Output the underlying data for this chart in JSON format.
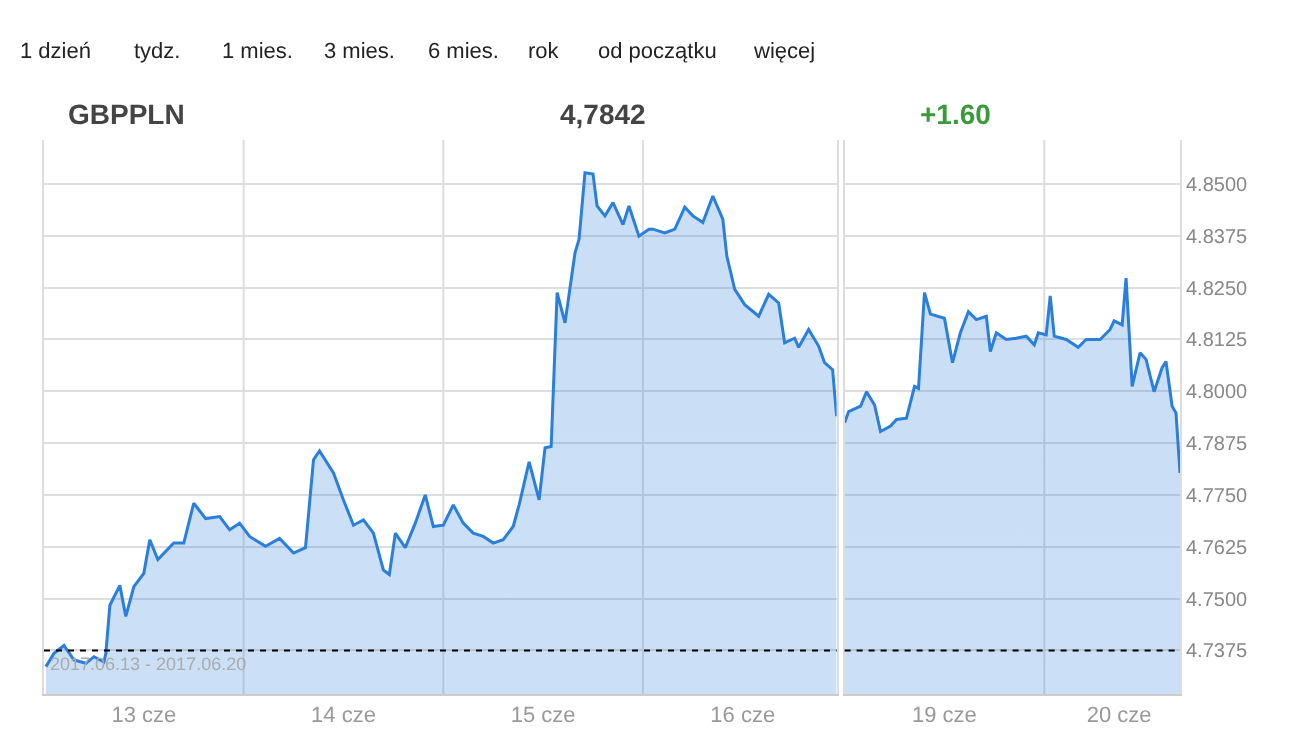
{
  "chart_data": [
    {
      "type": "area",
      "title": "GBPPLN",
      "annotations": [
        "1 dzień",
        "tydz.",
        "1 mies.",
        "3 mies.",
        "6 mies.",
        "rok",
        "od początku",
        "więcej",
        "4,7842",
        "+1.60",
        "2017.06.13 - 2017.06.20"
      ],
      "series": [
        {
          "color": "#2a7fdc",
          "x": [
            "2017-06-13T00:14",
            "2017-06-13T01:12",
            "2017-06-13T02:24",
            "2017-06-13T03:36",
            "2017-06-13T05:02",
            "2017-06-13T06:00",
            "2017-06-13T07:12",
            "2017-06-13T07:26",
            "2017-06-13T07:55",
            "2017-06-13T09:07",
            "2017-06-13T09:50",
            "2017-06-13T10:48",
            "2017-06-13T12:00",
            "2017-06-13T12:43",
            "2017-06-13T13:41",
            "2017-06-13T15:36",
            "2017-06-13T16:48",
            "2017-06-13T18:00",
            "2017-06-13T19:26",
            "2017-06-13T21:07",
            "2017-06-13T22:19",
            "2017-06-13T23:31",
            "2017-06-14T00:43",
            "2017-06-14T02:38",
            "2017-06-14T04:19",
            "2017-06-14T06:00",
            "2017-06-14T07:26",
            "2017-06-14T08:24",
            "2017-06-14T09:07",
            "2017-06-14T10:48",
            "2017-06-14T12:00",
            "2017-06-14T13:12",
            "2017-06-14T14:24",
            "2017-06-14T15:36",
            "2017-06-14T16:48",
            "2017-06-14T17:31",
            "2017-06-14T18:14",
            "2017-06-14T19:26",
            "2017-06-14T20:38",
            "2017-06-14T21:50",
            "2017-06-14T22:48",
            "2017-06-15T00:00",
            "2017-06-15T01:12",
            "2017-06-15T02:24",
            "2017-06-15T03:36",
            "2017-06-15T04:48",
            "2017-06-15T06:00",
            "2017-06-15T07:12",
            "2017-06-15T08:24",
            "2017-06-15T09:07",
            "2017-06-15T10:19",
            "2017-06-15T11:31",
            "2017-06-15T12:14",
            "2017-06-15T12:58",
            "2017-06-15T13:41",
            "2017-06-15T14:38",
            "2017-06-15T15:50",
            "2017-06-15T16:19",
            "2017-06-15T17:02",
            "2017-06-15T18:00",
            "2017-06-15T18:29",
            "2017-06-15T19:26",
            "2017-06-15T20:24",
            "2017-06-15T21:36",
            "2017-06-15T22:19",
            "2017-06-15T23:31",
            "2017-06-16T00:43",
            "2017-06-16T01:12",
            "2017-06-16T02:38",
            "2017-06-16T03:50",
            "2017-06-16T05:02",
            "2017-06-16T06:00",
            "2017-06-16T07:12",
            "2017-06-16T08:24",
            "2017-06-16T09:36",
            "2017-06-16T10:05",
            "2017-06-16T11:02",
            "2017-06-16T12:14",
            "2017-06-16T13:55",
            "2017-06-16T15:07",
            "2017-06-16T16:19",
            "2017-06-16T17:02",
            "2017-06-16T18:14",
            "2017-06-16T18:43",
            "2017-06-16T19:55",
            "2017-06-16T21:07",
            "2017-06-16T21:50",
            "2017-06-16T22:48",
            "2017-06-16T23:17"
          ],
          "values": [
            4.7336,
            4.7368,
            4.7387,
            4.7352,
            4.7344,
            4.736,
            4.7347,
            4.7368,
            4.7484,
            4.7532,
            4.7457,
            4.7529,
            4.7561,
            4.7642,
            4.7594,
            4.7634,
            4.7634,
            4.773,
            4.7693,
            4.7698,
            4.7666,
            4.7682,
            4.765,
            4.7626,
            4.7645,
            4.761,
            4.7623,
            4.7835,
            4.7856,
            4.7803,
            4.7738,
            4.7677,
            4.769,
            4.7658,
            4.7569,
            4.7558,
            4.7658,
            4.7623,
            4.7682,
            4.775,
            4.7674,
            4.7677,
            4.7726,
            4.7682,
            4.7658,
            4.765,
            4.7634,
            4.7642,
            4.7674,
            4.7726,
            4.783,
            4.7738,
            4.7864,
            4.7867,
            4.8238,
            4.8165,
            4.8334,
            4.8366,
            4.8527,
            4.8524,
            4.8447,
            4.8423,
            4.8455,
            4.8402,
            4.8447,
            4.8374,
            4.8391,
            4.8391,
            4.8382,
            4.8391,
            4.8444,
            4.8423,
            4.8407,
            4.8471,
            4.8415,
            4.8326,
            4.8246,
            4.8209,
            4.8181,
            4.8234,
            4.8213,
            4.8117,
            4.8128,
            4.8106,
            4.8149,
            4.8109,
            4.8069,
            4.8052,
            4.794
          ]
        }
      ],
      "xlim": [
        "2017-06-13T00:00",
        "2017-06-16T23:17"
      ],
      "xticks": [
        {
          "value": "2017-06-13T12:00",
          "label": "13 cze"
        },
        {
          "value": "2017-06-14T12:00",
          "label": "14 cze"
        },
        {
          "value": "2017-06-15T12:00",
          "label": "15 cze"
        },
        {
          "value": "2017-06-16T12:00",
          "label": "16 cze"
        }
      ],
      "ylim": [
        4.727,
        4.8606
      ],
      "yticks": [
        4.7375,
        4.75,
        4.7625,
        4.775,
        4.7875,
        4.8,
        4.8125,
        4.825,
        4.8375,
        4.85
      ],
      "tick_labels": "x",
      "ref_lines": [
        {
          "axis": "y",
          "value": 4.7375,
          "color": "#000000",
          "line_style": "dotted"
        },
        {
          "axis": "x",
          "value": "2017-06-14T00:00",
          "color": "#dddddd"
        },
        {
          "axis": "x",
          "value": "2017-06-15T00:00",
          "color": "#dddddd"
        },
        {
          "axis": "x",
          "value": "2017-06-16T00:00",
          "color": "#dddddd"
        }
      ],
      "grid": "y"
    },
    {
      "type": "area",
      "series": [
        {
          "color": "#2a7fdc",
          "x": [
            "2017-06-19T00:00",
            "2017-06-19T00:29",
            "2017-06-19T01:55",
            "2017-06-19T02:38",
            "2017-06-19T03:36",
            "2017-06-19T04:19",
            "2017-06-19T05:31",
            "2017-06-19T06:14",
            "2017-06-19T07:26",
            "2017-06-19T08:24",
            "2017-06-19T08:53",
            "2017-06-19T09:36",
            "2017-06-19T10:19",
            "2017-06-19T12:00",
            "2017-06-19T12:58",
            "2017-06-19T13:55",
            "2017-06-19T14:53",
            "2017-06-19T15:50",
            "2017-06-19T17:02",
            "2017-06-19T17:31",
            "2017-06-19T18:14",
            "2017-06-19T19:26",
            "2017-06-19T20:38",
            "2017-06-19T21:50",
            "2017-06-19T22:48",
            "2017-06-19T23:17",
            "2017-06-20T00:14",
            "2017-06-20T00:43",
            "2017-06-20T01:12",
            "2017-06-20T02:38",
            "2017-06-20T04:05",
            "2017-06-20T05:02",
            "2017-06-20T06:43",
            "2017-06-20T07:55",
            "2017-06-20T08:24",
            "2017-06-20T09:22",
            "2017-06-20T09:50",
            "2017-06-20T10:34",
            "2017-06-20T11:31",
            "2017-06-20T12:14",
            "2017-06-20T13:12",
            "2017-06-20T14:10",
            "2017-06-20T14:38",
            "2017-06-20T15:22",
            "2017-06-20T15:50",
            "2017-06-20T16:19"
          ],
          "values": [
            4.7924,
            4.7951,
            4.7964,
            4.7999,
            4.7967,
            4.7903,
            4.7916,
            4.7932,
            4.7935,
            4.8012,
            4.8007,
            4.8238,
            4.8186,
            4.8176,
            4.8069,
            4.8141,
            4.8192,
            4.8173,
            4.8181,
            4.8096,
            4.8141,
            4.8125,
            4.8128,
            4.8133,
            4.8112,
            4.8141,
            4.8136,
            4.823,
            4.8133,
            4.8125,
            4.8106,
            4.8125,
            4.8125,
            4.8149,
            4.817,
            4.816,
            4.8273,
            4.8012,
            4.8093,
            4.8077,
            4.7999,
            4.8057,
            4.8072,
            4.7964,
            4.7948,
            4.7803
          ]
        }
      ],
      "xlim": [
        "2017-06-19T00:00",
        "2017-06-20T16:19"
      ],
      "xticks": [
        {
          "value": "2017-06-19T12:00",
          "label": "19 cze"
        },
        {
          "value": "2017-06-20T09:00",
          "label": "20 cze"
        }
      ],
      "ylim": [
        4.727,
        4.8606
      ],
      "yticks": [
        {
          "value": 4.7375,
          "label": "4.7375"
        },
        {
          "value": 4.75,
          "label": "4.7500"
        },
        {
          "value": 4.7625,
          "label": "4.7625"
        },
        {
          "value": 4.775,
          "label": "4.7750"
        },
        {
          "value": 4.7875,
          "label": "4.7875"
        },
        {
          "value": 4.8,
          "label": "4.8000"
        },
        {
          "value": 4.8125,
          "label": "4.8125"
        },
        {
          "value": 4.825,
          "label": "4.8250"
        },
        {
          "value": 4.8375,
          "label": "4.8375"
        },
        {
          "value": 4.85,
          "label": "4.8500"
        }
      ],
      "ref_lines": [
        {
          "axis": "y",
          "value": 4.7375,
          "color": "#000000",
          "line_style": "dotted"
        },
        {
          "axis": "x",
          "value": "2017-06-20T00:00",
          "color": "#dddddd"
        }
      ],
      "grid": "y"
    }
  ]
}
